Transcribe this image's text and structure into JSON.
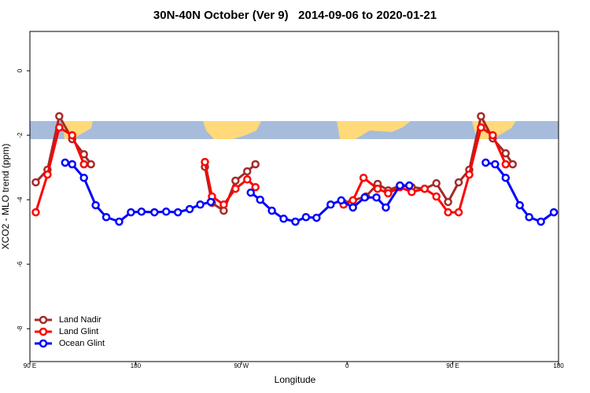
{
  "chart_data": {
    "type": "line",
    "title": "30N-40N October (Ver 9)   2014-09-06 to 2020-01-21",
    "x_label": "Longitude",
    "y_label": "XCO2 - MLO trend (ppm)",
    "xlim": [
      90,
      540
    ],
    "ylim": [
      -9.02,
      1.22
    ],
    "xticks": [
      {
        "value": 90,
        "label": "90 E"
      },
      180,
      {
        "value": 270,
        "label": "90 W"
      },
      {
        "value": 360,
        "label": "0"
      },
      {
        "value": 450,
        "label": "90 E"
      },
      {
        "value": 540,
        "label": "180"
      }
    ],
    "yticks": [
      0,
      -2,
      -4,
      -6,
      -8
    ],
    "legend": "bottom-left",
    "series": [
      {
        "name": "Land Nadir",
        "color": "#a52a2a",
        "x": [
          95,
          105,
          115,
          126,
          136,
          142,
          null,
          239,
          245,
          255,
          265,
          275,
          282,
          null,
          357,
          365,
          376,
          386,
          395,
          405,
          415,
          426,
          436,
          446,
          455,
          464,
          474,
          484,
          495,
          501
        ],
        "values": [
          -3.46,
          -3.07,
          -1.41,
          -2.12,
          -2.59,
          -2.9,
          null,
          -2.98,
          -4.1,
          -4.34,
          -3.41,
          -3.12,
          -2.9,
          null,
          -4.1,
          -4.02,
          -3.9,
          -3.51,
          -3.71,
          -3.56,
          -3.61,
          -3.66,
          -3.49,
          -4.07,
          -3.46,
          -3.07,
          -1.41,
          -2.1,
          -2.56,
          -2.9
        ]
      },
      {
        "name": "Land Glint",
        "color": "#ff0000",
        "x": [
          95,
          105,
          115,
          126,
          136,
          null,
          239,
          245,
          255,
          265,
          275,
          282,
          null,
          357,
          365,
          374,
          386,
          395,
          405,
          415,
          426,
          436,
          446,
          455,
          464,
          474,
          484,
          495
        ],
        "values": [
          -4.39,
          -3.22,
          -1.76,
          -2.0,
          -2.9,
          null,
          -2.83,
          -3.9,
          -4.15,
          -3.66,
          -3.37,
          -3.61,
          null,
          -4.15,
          -4.02,
          -3.32,
          -3.66,
          -3.8,
          -3.61,
          -3.76,
          -3.66,
          -3.9,
          -4.39,
          -4.39,
          -3.22,
          -1.76,
          -2.0,
          -2.9
        ]
      },
      {
        "name": "Ocean Glint",
        "color": "#0000ff",
        "x": [
          120,
          126,
          136,
          146,
          155,
          166,
          176,
          185,
          196,
          206,
          216,
          226,
          235,
          244,
          null,
          278,
          286,
          296,
          306,
          316,
          325,
          334,
          346,
          355,
          365,
          375,
          385,
          393,
          405,
          413,
          null,
          478,
          486,
          495,
          507,
          515,
          525,
          536
        ],
        "values": [
          -2.85,
          -2.9,
          -3.32,
          -4.17,
          -4.54,
          -4.68,
          -4.39,
          -4.37,
          -4.39,
          -4.37,
          -4.39,
          -4.29,
          -4.15,
          -4.07,
          null,
          -3.78,
          -4.0,
          -4.34,
          -4.59,
          -4.68,
          -4.54,
          -4.56,
          -4.15,
          -4.02,
          -4.24,
          -3.93,
          -3.93,
          -4.24,
          -3.56,
          -3.56,
          null,
          -2.85,
          -2.9,
          -3.32,
          -4.17,
          -4.54,
          -4.68,
          -4.39
        ]
      }
    ]
  }
}
